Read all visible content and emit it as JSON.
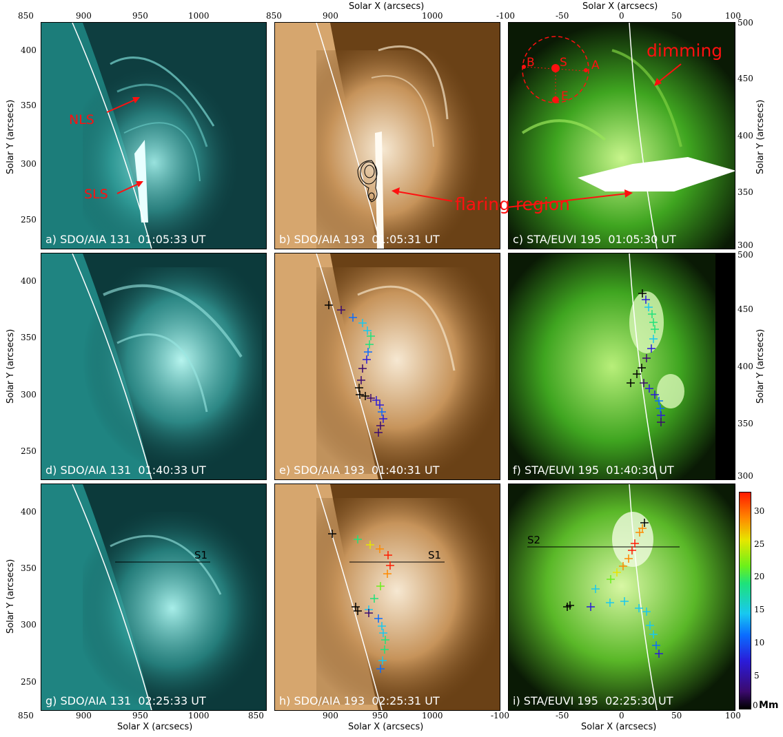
{
  "axes": {
    "top_xlabel": "Solar X (arcsecs)",
    "bottom_xlabel": "Solar X (arcsecs)",
    "left_ylabel": "Solar Y (arcsecs)",
    "right_ylabel": "Solar Y (arcsecs)",
    "sdo_x_ticks": [
      "850",
      "900",
      "950",
      "1000"
    ],
    "sta_x_ticks": [
      "-100",
      "-50",
      "0",
      "50",
      "100"
    ],
    "sdo_y_ticks": [
      "400",
      "350",
      "300",
      "250"
    ],
    "sta_y_ticks": [
      "500",
      "450",
      "400",
      "350",
      "300"
    ]
  },
  "panels": {
    "a": {
      "label": "a) SDO/AIA 131  01:05:33 UT"
    },
    "b": {
      "label": "b) SDO/AIA 193  01:05:31 UT"
    },
    "c": {
      "label": "c) STA/EUVI 195  01:05:30 UT"
    },
    "d": {
      "label": "d) SDO/AIA 131  01:40:33 UT"
    },
    "e": {
      "label": "e) SDO/AIA 193  01:40:31 UT"
    },
    "f": {
      "label": "f) STA/EUVI 195  01:40:30 UT"
    },
    "g": {
      "label": "g) SDO/AIA 131  02:25:33 UT"
    },
    "h": {
      "label": "h) SDO/AIA 193  02:25:31 UT"
    },
    "i": {
      "label": "i) STA/EUVI 195  02:25:30 UT"
    }
  },
  "annotations": {
    "nls": "NLS",
    "sls": "SLS",
    "flaring_region": "flaring region",
    "dimming": "dimming",
    "point_b": "B",
    "point_s": "S",
    "point_a": "A",
    "point_e": "E",
    "slit_s1": "S1",
    "slit_s2": "S2"
  },
  "colorbar": {
    "ticks": [
      "30",
      "25",
      "20",
      "15",
      "10",
      "5",
      "0"
    ],
    "unit": "Mm",
    "min": 0,
    "max": 33,
    "colors": [
      "#000000",
      "#3b0a6e",
      "#2a1bd8",
      "#0a6cff",
      "#18c8f0",
      "#1ee27a",
      "#6cf01a",
      "#e6e600",
      "#ff8a00",
      "#ff1a00"
    ]
  },
  "colors": {
    "aia131": "#19b5b0",
    "aia193": "#a06b32",
    "euvi195": "#3fa520",
    "annotation_red": "#ff1010"
  }
}
